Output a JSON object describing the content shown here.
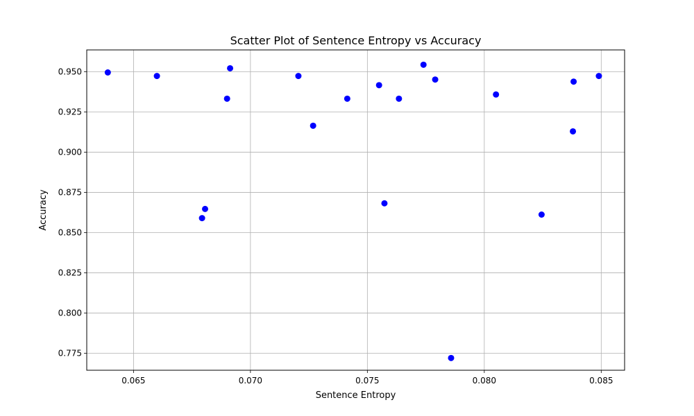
{
  "chart_data": {
    "type": "scatter",
    "title": "Scatter Plot of Sentence Entropy vs Accuracy",
    "xlabel": "Sentence Entropy",
    "ylabel": "Accuracy",
    "xlim": [
      0.063,
      0.086
    ],
    "ylim": [
      0.7645,
      0.9635
    ],
    "xticks": [
      0.065,
      0.07,
      0.075,
      0.08,
      0.085
    ],
    "xtick_labels": [
      "0.065",
      "0.070",
      "0.075",
      "0.080",
      "0.085"
    ],
    "yticks": [
      0.775,
      0.8,
      0.825,
      0.85,
      0.875,
      0.9,
      0.925,
      0.95
    ],
    "ytick_labels": [
      "0.775",
      "0.800",
      "0.825",
      "0.850",
      "0.875",
      "0.900",
      "0.925",
      "0.950"
    ],
    "grid": true,
    "marker_color": "#0000ff",
    "points": [
      {
        "x": 0.0639,
        "y": 0.9495
      },
      {
        "x": 0.066,
        "y": 0.9473
      },
      {
        "x": 0.06793,
        "y": 0.859
      },
      {
        "x": 0.06806,
        "y": 0.8647
      },
      {
        "x": 0.069,
        "y": 0.9332
      },
      {
        "x": 0.06913,
        "y": 0.9521
      },
      {
        "x": 0.07205,
        "y": 0.9473
      },
      {
        "x": 0.07268,
        "y": 0.9164
      },
      {
        "x": 0.07414,
        "y": 0.9332
      },
      {
        "x": 0.0755,
        "y": 0.9416
      },
      {
        "x": 0.07573,
        "y": 0.8682
      },
      {
        "x": 0.07635,
        "y": 0.9332
      },
      {
        "x": 0.0774,
        "y": 0.9543
      },
      {
        "x": 0.0779,
        "y": 0.9451
      },
      {
        "x": 0.07858,
        "y": 0.7721
      },
      {
        "x": 0.0805,
        "y": 0.9358
      },
      {
        "x": 0.08245,
        "y": 0.8612
      },
      {
        "x": 0.08379,
        "y": 0.9129
      },
      {
        "x": 0.08382,
        "y": 0.9438
      },
      {
        "x": 0.0849,
        "y": 0.9473
      }
    ]
  }
}
